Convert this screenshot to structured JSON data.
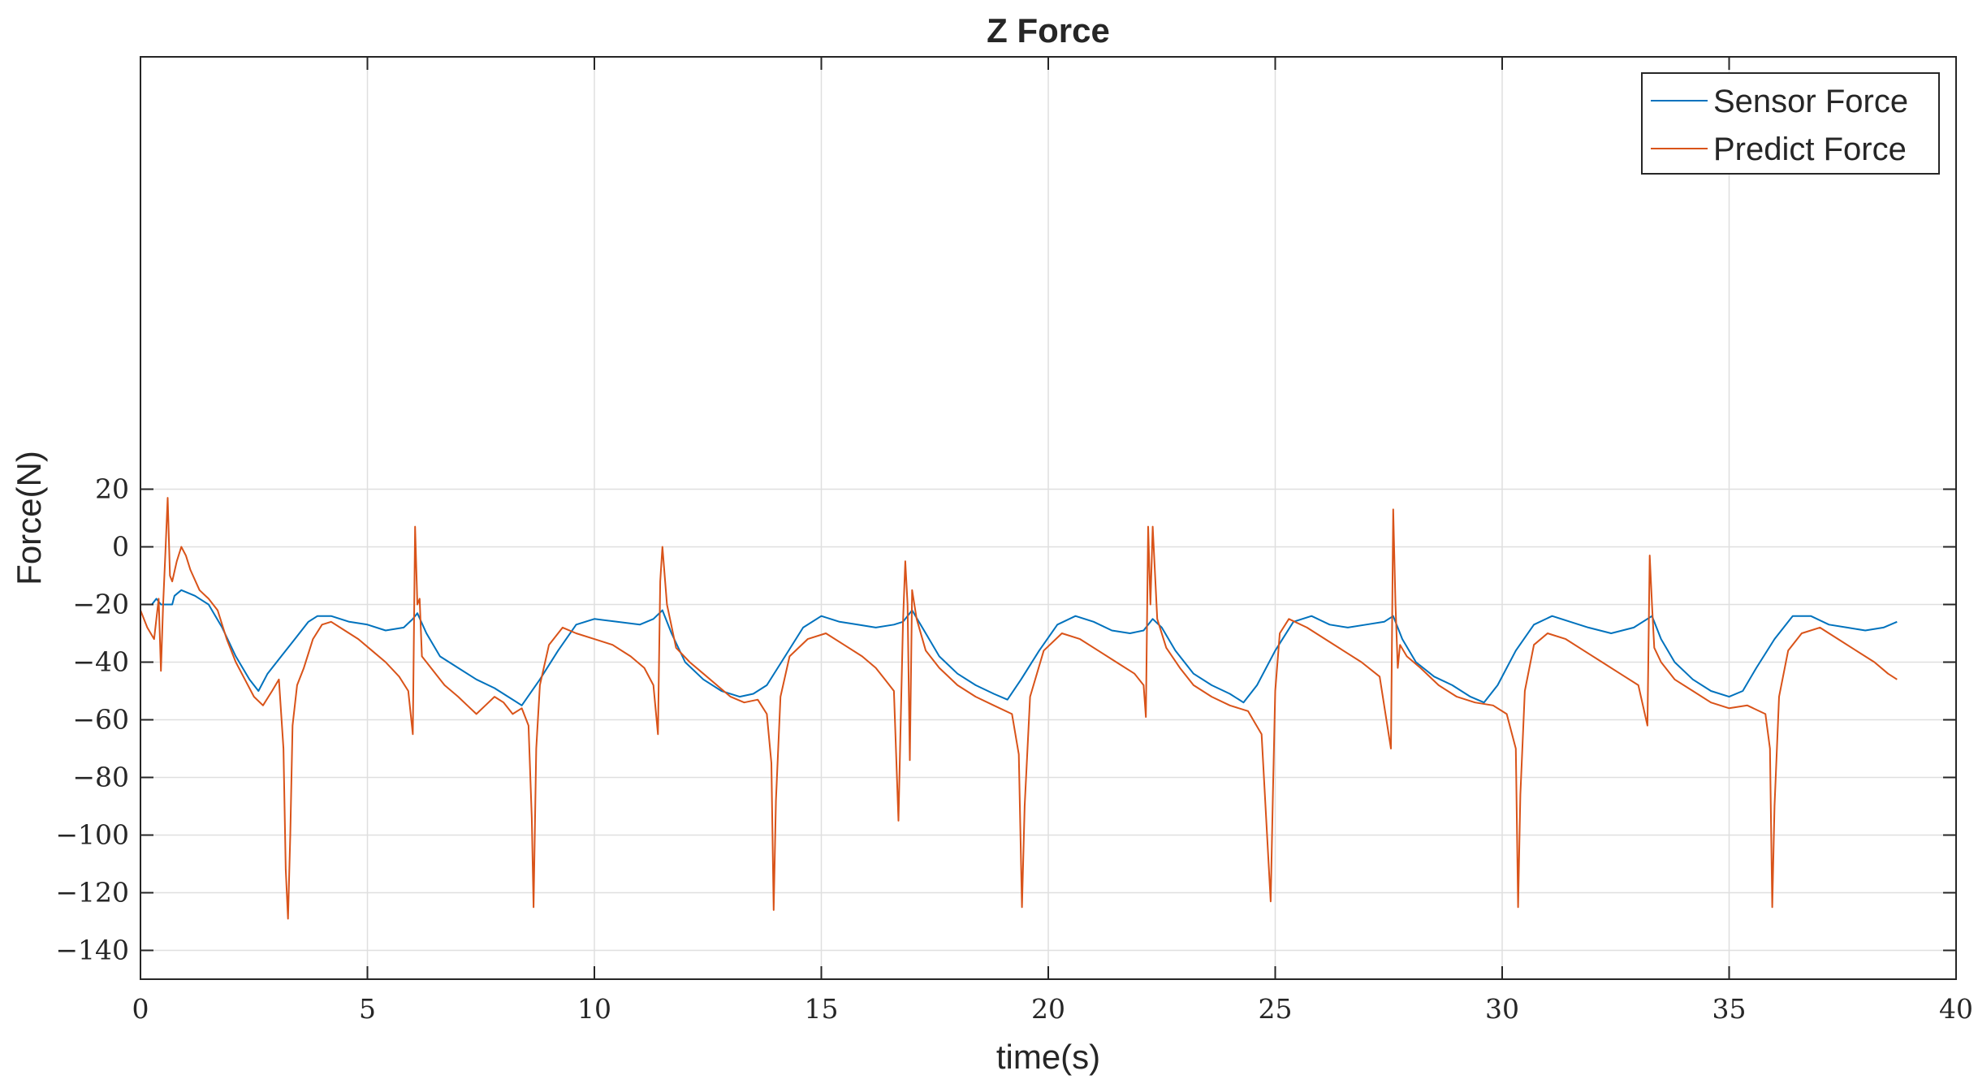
{
  "chart_data": {
    "type": "line",
    "title": "Z Force",
    "xlabel": "time(s)",
    "ylabel": "Force(N)",
    "xlim": [
      0,
      40
    ],
    "ylim": [
      -150,
      170
    ],
    "xticks": [
      0,
      5,
      10,
      15,
      20,
      25,
      30,
      35,
      40
    ],
    "yticks": [
      20,
      0,
      -20,
      -40,
      -60,
      -80,
      -100,
      -120,
      -140
    ],
    "xtick_labels": [
      "0",
      "5",
      "10",
      "15",
      "20",
      "25",
      "30",
      "35",
      "40"
    ],
    "ytick_labels": [
      "20",
      "0",
      "−20",
      "−40",
      "−60",
      "−80",
      "−100",
      "−120",
      "−140"
    ],
    "grid": true,
    "legend_position": "top-right",
    "series": [
      {
        "name": "Sensor Force",
        "color": "#0072BD",
        "x": [
          0,
          0.25,
          0.35,
          0.45,
          0.7,
          0.75,
          0.9,
          1.2,
          1.5,
          1.8,
          2.1,
          2.4,
          2.6,
          2.8,
          3.1,
          3.4,
          3.7,
          3.9,
          4.2,
          4.6,
          5.0,
          5.4,
          5.8,
          6.0,
          6.1,
          6.3,
          6.6,
          7.0,
          7.4,
          7.8,
          8.1,
          8.4,
          8.8,
          9.2,
          9.6,
          10.0,
          10.5,
          11.0,
          11.3,
          11.5,
          11.7,
          12.0,
          12.4,
          12.8,
          13.2,
          13.5,
          13.8,
          14.2,
          14.6,
          15.0,
          15.4,
          15.8,
          16.2,
          16.6,
          16.8,
          17.0,
          17.3,
          17.6,
          18.0,
          18.4,
          18.8,
          19.1,
          19.4,
          19.8,
          20.2,
          20.6,
          21.0,
          21.4,
          21.8,
          22.1,
          22.3,
          22.5,
          22.8,
          23.2,
          23.6,
          24.0,
          24.3,
          24.6,
          25.0,
          25.4,
          25.8,
          26.2,
          26.6,
          27.0,
          27.4,
          27.6,
          27.8,
          28.1,
          28.5,
          28.9,
          29.3,
          29.6,
          29.9,
          30.3,
          30.7,
          31.1,
          31.5,
          31.9,
          32.4,
          32.9,
          33.3,
          33.5,
          33.8,
          34.2,
          34.6,
          35.0,
          35.3,
          35.6,
          36.0,
          36.4,
          36.8,
          37.2,
          37.6,
          38.0,
          38.4,
          38.7
        ],
        "y": [
          -20,
          -20,
          -18,
          -20,
          -20,
          -17,
          -15,
          -17,
          -20,
          -28,
          -38,
          -46,
          -50,
          -44,
          -38,
          -32,
          -26,
          -24,
          -24,
          -26,
          -27,
          -29,
          -28,
          -25,
          -23,
          -30,
          -38,
          -42,
          -46,
          -49,
          -52,
          -55,
          -46,
          -36,
          -27,
          -25,
          -26,
          -27,
          -25,
          -22,
          -30,
          -40,
          -46,
          -50,
          -52,
          -51,
          -48,
          -38,
          -28,
          -24,
          -26,
          -27,
          -28,
          -27,
          -26,
          -22,
          -30,
          -38,
          -44,
          -48,
          -51,
          -53,
          -46,
          -36,
          -27,
          -24,
          -26,
          -29,
          -30,
          -29,
          -25,
          -28,
          -36,
          -44,
          -48,
          -51,
          -54,
          -48,
          -36,
          -26,
          -24,
          -27,
          -28,
          -27,
          -26,
          -24,
          -32,
          -40,
          -45,
          -48,
          -52,
          -54,
          -48,
          -36,
          -27,
          -24,
          -26,
          -28,
          -30,
          -28,
          -24,
          -32,
          -40,
          -46,
          -50,
          -52,
          -50,
          -42,
          -32,
          -24,
          -24,
          -27,
          -28,
          -29,
          -28,
          -26
        ]
      },
      {
        "name": "Predict Force",
        "color": "#D95319",
        "x": [
          0,
          0.15,
          0.3,
          0.4,
          0.45,
          0.5,
          0.55,
          0.6,
          0.65,
          0.7,
          0.8,
          0.9,
          1.0,
          1.1,
          1.3,
          1.5,
          1.7,
          1.9,
          2.1,
          2.3,
          2.5,
          2.7,
          2.9,
          3.05,
          3.15,
          3.2,
          3.25,
          3.3,
          3.35,
          3.45,
          3.6,
          3.8,
          4.0,
          4.2,
          4.5,
          4.8,
          5.1,
          5.4,
          5.7,
          5.9,
          6.0,
          6.05,
          6.1,
          6.15,
          6.2,
          6.4,
          6.7,
          7.0,
          7.2,
          7.4,
          7.6,
          7.8,
          8.0,
          8.2,
          8.4,
          8.55,
          8.62,
          8.66,
          8.72,
          8.8,
          9.0,
          9.3,
          9.6,
          10.0,
          10.4,
          10.8,
          11.1,
          11.3,
          11.4,
          11.45,
          11.5,
          11.6,
          11.8,
          12.1,
          12.4,
          12.7,
          13.0,
          13.3,
          13.6,
          13.8,
          13.9,
          13.95,
          14.0,
          14.1,
          14.3,
          14.7,
          15.1,
          15.5,
          15.9,
          16.2,
          16.4,
          16.6,
          16.7,
          16.75,
          16.8,
          16.85,
          16.9,
          16.95,
          17.0,
          17.1,
          17.3,
          17.6,
          18.0,
          18.4,
          18.8,
          19.2,
          19.35,
          19.42,
          19.48,
          19.6,
          19.9,
          20.3,
          20.7,
          21.1,
          21.5,
          21.9,
          22.1,
          22.15,
          22.2,
          22.25,
          22.3,
          22.4,
          22.6,
          22.9,
          23.2,
          23.6,
          24.0,
          24.4,
          24.7,
          24.9,
          24.95,
          25.0,
          25.1,
          25.3,
          25.7,
          26.1,
          26.5,
          26.9,
          27.3,
          27.55,
          27.6,
          27.65,
          27.7,
          27.75,
          27.9,
          28.2,
          28.6,
          29.0,
          29.4,
          29.8,
          30.1,
          30.3,
          30.35,
          30.4,
          30.5,
          30.7,
          31.0,
          31.4,
          31.8,
          32.2,
          32.6,
          33.0,
          33.2,
          33.25,
          33.3,
          33.35,
          33.5,
          33.8,
          34.2,
          34.6,
          35.0,
          35.4,
          35.8,
          35.9,
          35.95,
          36.0,
          36.1,
          36.3,
          36.6,
          37.0,
          37.4,
          37.8,
          38.2,
          38.5,
          38.7
        ],
        "y": [
          -22,
          -28,
          -32,
          -18,
          -43,
          -20,
          -2,
          17,
          -10,
          -12,
          -5,
          0,
          -3,
          -8,
          -15,
          -18,
          -22,
          -32,
          -40,
          -46,
          -52,
          -55,
          -50,
          -46,
          -70,
          -112,
          -129,
          -100,
          -62,
          -48,
          -42,
          -32,
          -27,
          -26,
          -29,
          -32,
          -36,
          -40,
          -45,
          -50,
          -65,
          7,
          -20,
          -18,
          -38,
          -42,
          -48,
          -52,
          -55,
          -58,
          -55,
          -52,
          -54,
          -58,
          -56,
          -62,
          -94,
          -125,
          -70,
          -48,
          -34,
          -28,
          -30,
          -32,
          -34,
          -38,
          -42,
          -48,
          -65,
          -12,
          0,
          -20,
          -35,
          -40,
          -44,
          -48,
          -52,
          -54,
          -53,
          -58,
          -75,
          -126,
          -88,
          -52,
          -38,
          -32,
          -30,
          -34,
          -38,
          -42,
          -46,
          -50,
          -95,
          -60,
          -26,
          -5,
          -20,
          -74,
          -15,
          -25,
          -36,
          -42,
          -48,
          -52,
          -55,
          -58,
          -72,
          -125,
          -90,
          -52,
          -36,
          -30,
          -32,
          -36,
          -40,
          -44,
          -48,
          -59,
          7,
          -20,
          7,
          -25,
          -35,
          -42,
          -48,
          -52,
          -55,
          -57,
          -65,
          -123,
          -85,
          -50,
          -30,
          -25,
          -28,
          -32,
          -36,
          -40,
          -45,
          -70,
          13,
          -20,
          -42,
          -34,
          -38,
          -42,
          -48,
          -52,
          -54,
          -55,
          -58,
          -70,
          -125,
          -86,
          -50,
          -34,
          -30,
          -32,
          -36,
          -40,
          -44,
          -48,
          -62,
          -3,
          -20,
          -35,
          -40,
          -46,
          -50,
          -54,
          -56,
          -55,
          -58,
          -70,
          -125,
          -90,
          -52,
          -36,
          -30,
          -28,
          -32,
          -36,
          -40,
          -44,
          -46
        ]
      }
    ]
  }
}
